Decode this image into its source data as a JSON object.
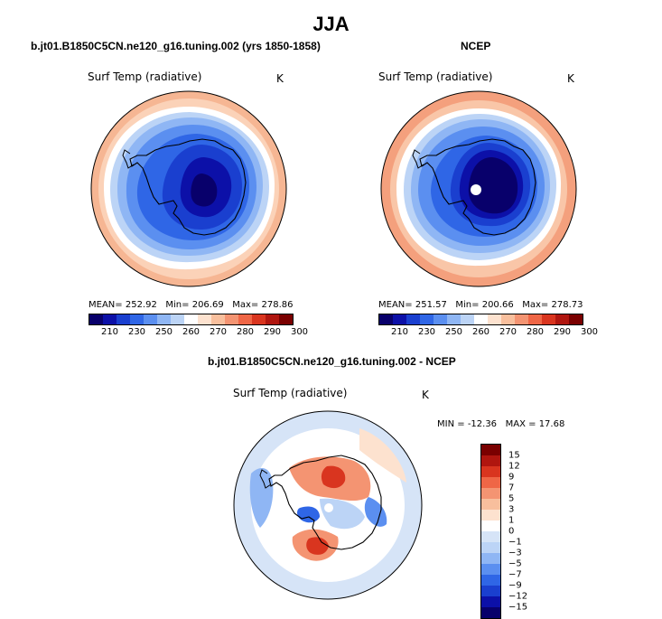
{
  "chart_data": [
    {
      "type": "heatmap",
      "projection": "south-polar-stereographic",
      "title": "b.jt01.B1850C5CN.ne120_g16.tuning.002 (yrs 1850-1858)",
      "field": "Surf Temp (radiative)",
      "units": "K",
      "stats": {
        "mean": "252.92",
        "min": "206.69",
        "max": "278.86"
      },
      "colorbar_levels": [
        "210",
        "230",
        "250",
        "260",
        "270",
        "280",
        "290",
        "300"
      ]
    },
    {
      "type": "heatmap",
      "projection": "south-polar-stereographic",
      "title": "NCEP",
      "field": "Surf Temp (radiative)",
      "units": "K",
      "stats": {
        "mean": "251.57",
        "min": "200.66",
        "max": "278.73"
      },
      "colorbar_levels": [
        "210",
        "230",
        "250",
        "260",
        "270",
        "280",
        "290",
        "300"
      ]
    },
    {
      "type": "heatmap",
      "projection": "south-polar-stereographic",
      "title": "b.jt01.B1850C5CN.ne120_g16.tuning.002 - NCEP",
      "field": "Surf Temp (radiative)",
      "units": "K",
      "stats": {
        "min": "-12.36",
        "max": "17.68"
      },
      "colorbar_levels": [
        "15",
        "12",
        "9",
        "7",
        "5",
        "3",
        "1",
        "0",
        "−1",
        "−3",
        "−5",
        "−7",
        "−9",
        "−12",
        "−15"
      ]
    }
  ],
  "header": {
    "season": "JJA"
  },
  "labels": {
    "mean_prefix": "MEAN=",
    "min_prefix": "Min=",
    "max_prefix": "Max=",
    "diff_min_prefix": "MIN =",
    "diff_max_prefix": "MAX ="
  },
  "colors": {
    "abs_colorbar": [
      "#08006b",
      "#0c10a8",
      "#1a3fcf",
      "#2f66e6",
      "#5b8ff0",
      "#8fb6f4",
      "#bcd4f6",
      "#ffffff",
      "#fde2cf",
      "#f8bf9d",
      "#f49472",
      "#ef6646",
      "#d9351f",
      "#b0160f",
      "#7a0000"
    ],
    "diff_colorbar": [
      "#7a0000",
      "#b0160f",
      "#d9351f",
      "#ef6646",
      "#f49472",
      "#f8bf9d",
      "#fde2cf",
      "#ffffff",
      "#d6e4f7",
      "#bcd4f6",
      "#8fb6f4",
      "#5b8ff0",
      "#2f66e6",
      "#1a3fcf",
      "#0c10a8",
      "#08006b"
    ]
  }
}
